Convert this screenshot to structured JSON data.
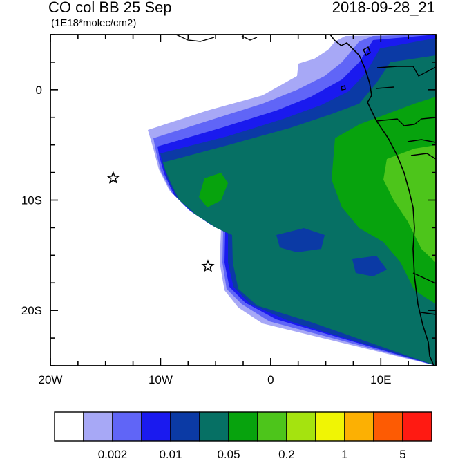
{
  "title": "CO col BB 25 Sep",
  "datetime": "2018-09-28_21",
  "units": "(1E18*molec/cm2)",
  "map": {
    "lon_range": [
      -20,
      15
    ],
    "lat_range": [
      -25,
      5
    ],
    "x_tick_labels": [
      {
        "lon": -20,
        "label": "20W"
      },
      {
        "lon": -10,
        "label": "10W"
      },
      {
        "lon": 0,
        "label": "0"
      },
      {
        "lon": 10,
        "label": "10E"
      }
    ],
    "y_tick_labels": [
      {
        "lat": 0,
        "label": "0"
      },
      {
        "lat": -10,
        "label": "10S"
      },
      {
        "lat": -20,
        "label": "20S"
      }
    ],
    "markers": [
      {
        "name": "star-marker",
        "lon": -14.3,
        "lat": -8.0
      },
      {
        "name": "star-marker",
        "lon": -5.7,
        "lat": -16.0
      }
    ]
  },
  "colorbar": {
    "colors": [
      "#ffffff",
      "#a7a8f6",
      "#6065f7",
      "#1a1aef",
      "#0b3aa5",
      "#067064",
      "#07a30d",
      "#4dc51b",
      "#a5e30f",
      "#f0f504",
      "#fcb003",
      "#fd5b03",
      "#ff1a12"
    ],
    "labels": [
      {
        "boundary": 2,
        "label": "0.002"
      },
      {
        "boundary": 4,
        "label": "0.01"
      },
      {
        "boundary": 6,
        "label": "0.05"
      },
      {
        "boundary": 8,
        "label": "0.2"
      },
      {
        "boundary": 10,
        "label": "1"
      },
      {
        "boundary": 12,
        "label": "5"
      }
    ]
  }
}
